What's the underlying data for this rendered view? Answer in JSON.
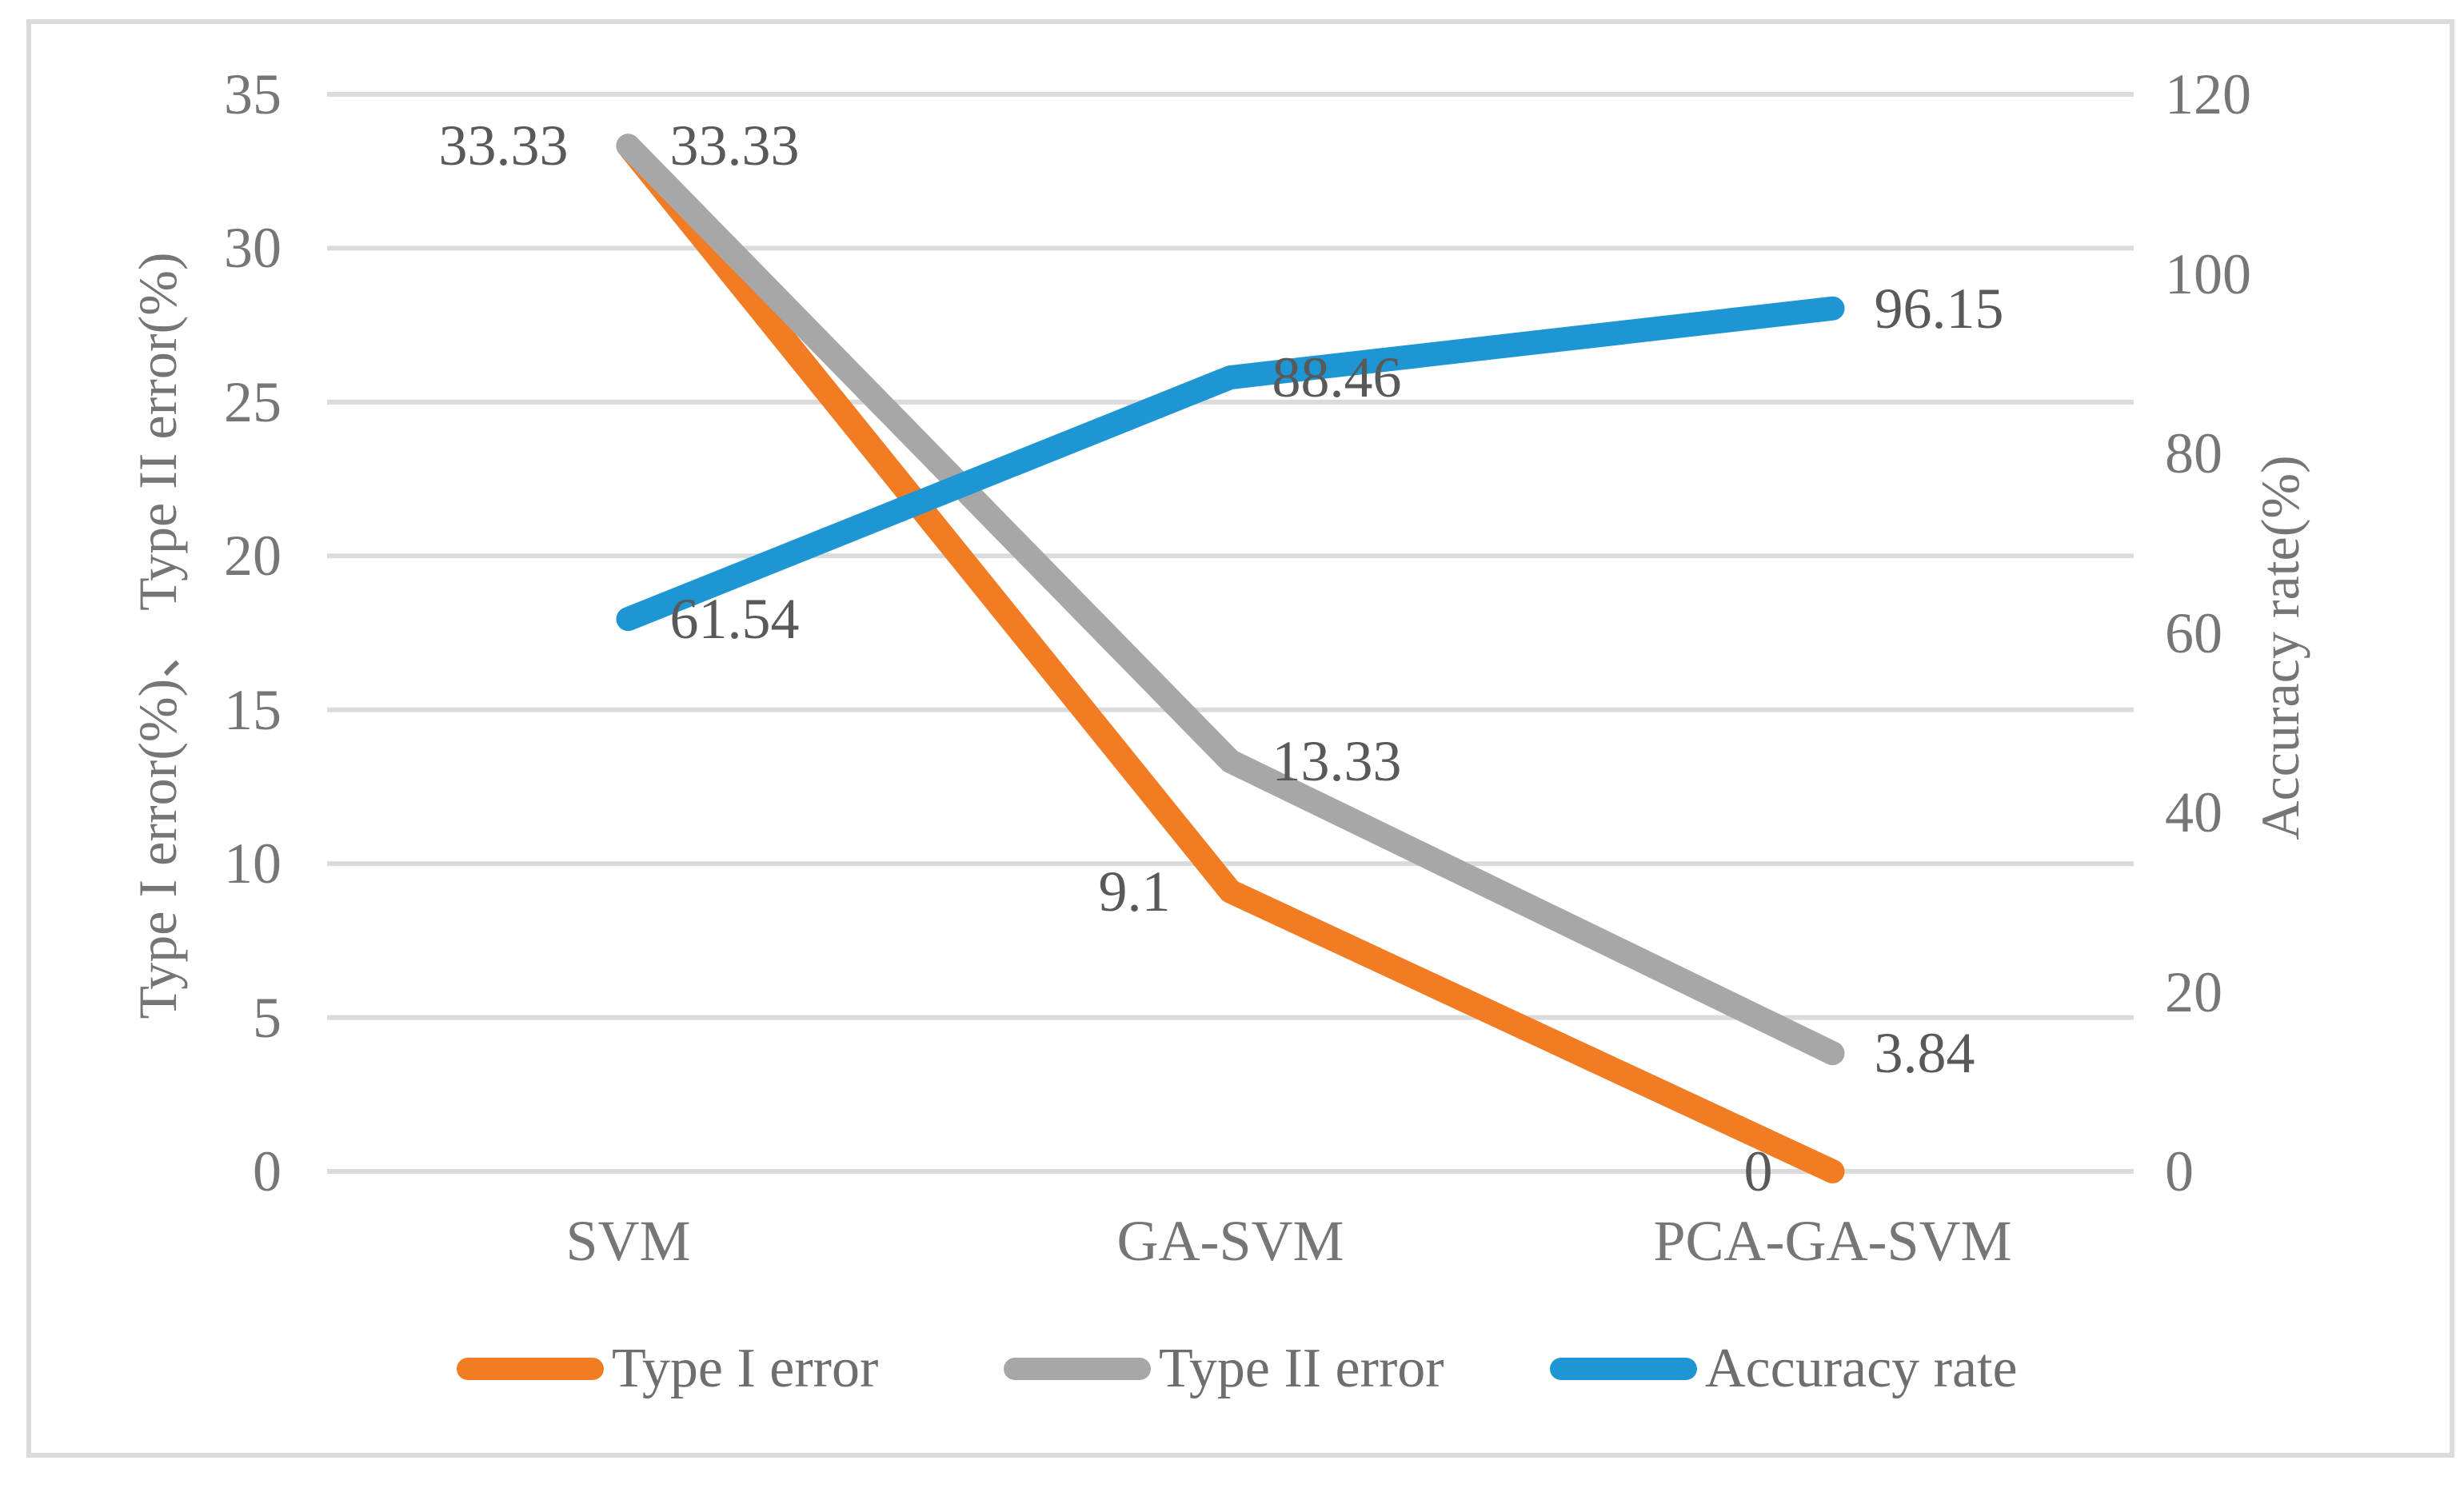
{
  "chart_data": {
    "type": "line",
    "title": "",
    "categories": [
      "SVM",
      "GA-SVM",
      "PCA-GA-SVM"
    ],
    "series": [
      {
        "name": "Type I error",
        "axis": "left",
        "color": "#F17C24",
        "values": [
          33.33,
          9.1,
          0
        ],
        "labels": [
          "33.33",
          "9.1",
          "0"
        ],
        "label_side": "left"
      },
      {
        "name": "Type II error",
        "axis": "left",
        "color": "#A7A7A7",
        "values": [
          33.33,
          13.33,
          3.84
        ],
        "labels": [
          "33.33",
          "13.33",
          "3.84"
        ],
        "label_side": "right"
      },
      {
        "name": "Accuracy rate",
        "axis": "right",
        "color": "#1F96D4",
        "values": [
          61.54,
          88.46,
          96.15
        ],
        "labels": [
          "61.54",
          "88.46",
          "96.15"
        ],
        "label_side": "right"
      }
    ],
    "left_axis": {
      "title": "Type I error(%)、 Type II error(%)",
      "min": 0,
      "max": 35,
      "ticks": [
        "35",
        "30",
        "25",
        "20",
        "15",
        "10",
        "5",
        "0"
      ]
    },
    "right_axis": {
      "title": "Accuracy rate(%)",
      "min": 0,
      "max": 120,
      "ticks": [
        "120",
        "100",
        "80",
        "60",
        "40",
        "20",
        "0"
      ]
    },
    "grid": true,
    "legend_position": "bottom",
    "legend": [
      "Type I error",
      "Type II error",
      "Accuracy rate"
    ]
  },
  "colors": {
    "gridline": "#dbdbdb",
    "frame_border": "#dbdbdb",
    "tick_text": "#767676",
    "data_label_text": "#595959",
    "axis_title_text": "#757575",
    "legend_text": "#6e6e6e",
    "background": "#ffffff"
  }
}
